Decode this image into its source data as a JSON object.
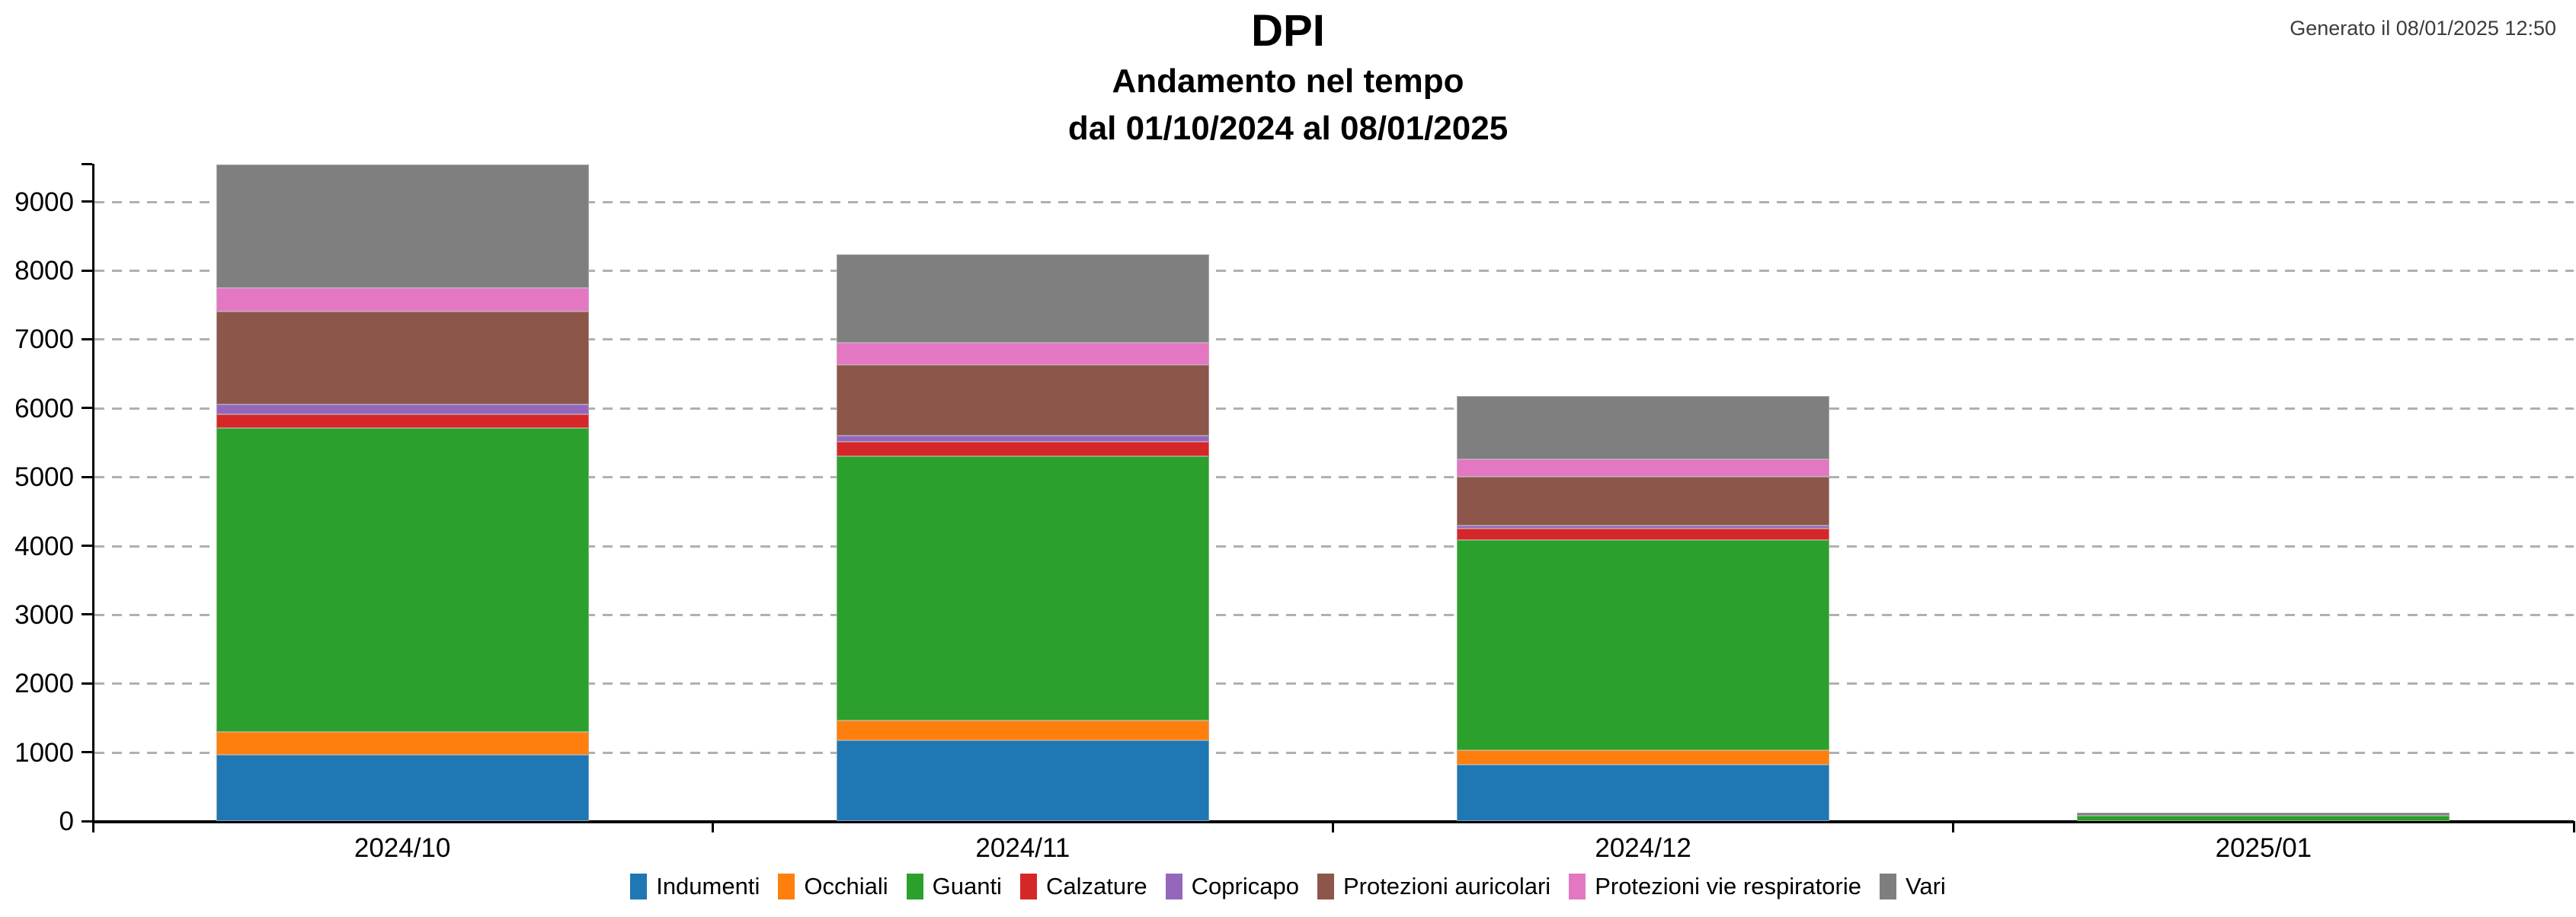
{
  "header": {
    "title": "DPI",
    "subtitle": "Andamento nel tempo",
    "date_range": "dal 01/10/2024 al 08/01/2025",
    "generated_label": "Generato il 08/01/2025 12:50"
  },
  "colors": {
    "axis": "#000000",
    "gridline": "#b0b0b0",
    "timestamp_text": "#3c3c3c",
    "label_text": "#000000"
  },
  "chart_data": {
    "type": "bar",
    "stacked": true,
    "title": "DPI",
    "subtitle": "Andamento nel tempo",
    "period": "dal 01/10/2024 al 08/01/2025",
    "xlabel": "",
    "ylabel": "",
    "categories": [
      "2024/10",
      "2024/11",
      "2024/12",
      "2025/01"
    ],
    "series": [
      {
        "name": "Indumenti",
        "color": "#1f77b4",
        "values": [
          960,
          1175,
          820,
          0
        ]
      },
      {
        "name": "Occhiali",
        "color": "#ff7f0e",
        "values": [
          340,
          285,
          210,
          0
        ]
      },
      {
        "name": "Guanti",
        "color": "#2ca02c",
        "values": [
          4405,
          3840,
          3055,
          75
        ]
      },
      {
        "name": "Calzature",
        "color": "#d62728",
        "values": [
          205,
          210,
          165,
          0
        ]
      },
      {
        "name": "Copricapo",
        "color": "#9467bd",
        "values": [
          145,
          90,
          40,
          0
        ]
      },
      {
        "name": "Protezioni auricolari",
        "color": "#8c564b",
        "values": [
          1350,
          1030,
          710,
          0
        ]
      },
      {
        "name": "Protezioni vie respiratorie",
        "color": "#e377c2",
        "values": [
          345,
          320,
          260,
          0
        ]
      },
      {
        "name": "Vari",
        "color": "#7f7f7f",
        "values": [
          1785,
          1280,
          915,
          45
        ]
      }
    ],
    "totals": [
      9535,
      8230,
      6175,
      120
    ],
    "yticks": [
      0,
      1000,
      2000,
      3000,
      4000,
      5000,
      6000,
      7000,
      8000,
      9000
    ],
    "ylim": [
      0,
      9550
    ],
    "grid": "horizontal-dashed",
    "legend_position": "bottom"
  }
}
